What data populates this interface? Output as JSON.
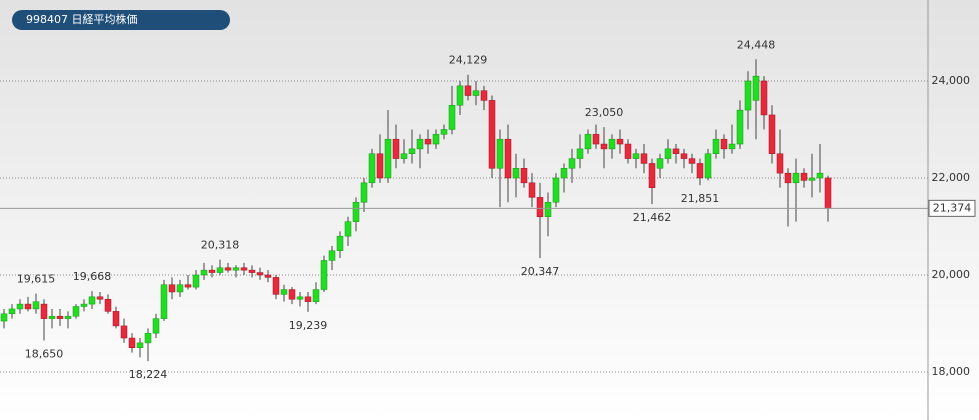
{
  "chart_data": {
    "type": "candlestick",
    "title": "998407 日経平均株価",
    "ylim": [
      17010,
      25670
    ],
    "yticks": [
      {
        "value": 18000,
        "label": "18,000"
      },
      {
        "value": 20000,
        "label": "20,000"
      },
      {
        "value": 22000,
        "label": "22,000"
      },
      {
        "value": 24000,
        "label": "24,000"
      }
    ],
    "grid": true,
    "up_color": "#22dd22",
    "down_color": "#e8283c",
    "candles": [
      [
        19050,
        19300,
        18900,
        19200
      ],
      [
        19200,
        19400,
        19100,
        19300
      ],
      [
        19300,
        19500,
        19200,
        19400
      ],
      [
        19400,
        19550,
        19250,
        19300
      ],
      [
        19300,
        19615,
        19200,
        19450
      ],
      [
        19400,
        19500,
        18650,
        19100
      ],
      [
        19100,
        19300,
        18900,
        19150
      ],
      [
        19150,
        19300,
        18950,
        19100
      ],
      [
        19100,
        19250,
        18900,
        19150
      ],
      [
        19150,
        19400,
        19100,
        19350
      ],
      [
        19350,
        19500,
        19250,
        19400
      ],
      [
        19400,
        19668,
        19300,
        19550
      ],
      [
        19550,
        19650,
        19400,
        19500
      ],
      [
        19500,
        19600,
        19200,
        19250
      ],
      [
        19250,
        19350,
        18900,
        18950
      ],
      [
        18950,
        19100,
        18600,
        18700
      ],
      [
        18700,
        18800,
        18400,
        18500
      ],
      [
        18500,
        18700,
        18300,
        18600
      ],
      [
        18600,
        18900,
        18224,
        18800
      ],
      [
        18800,
        19200,
        18700,
        19100
      ],
      [
        19100,
        19900,
        19050,
        19800
      ],
      [
        19800,
        19950,
        19500,
        19650
      ],
      [
        19650,
        19900,
        19550,
        19800
      ],
      [
        19800,
        20000,
        19700,
        19750
      ],
      [
        19750,
        20100,
        19700,
        20000
      ],
      [
        20000,
        20250,
        19900,
        20100
      ],
      [
        20100,
        20200,
        19950,
        20050
      ],
      [
        20050,
        20318,
        20000,
        20150
      ],
      [
        20150,
        20250,
        20050,
        20100
      ],
      [
        20100,
        20200,
        19950,
        20150
      ],
      [
        20150,
        20250,
        20000,
        20100
      ],
      [
        20100,
        20200,
        19950,
        20050
      ],
      [
        20050,
        20150,
        19900,
        20000
      ],
      [
        20000,
        20100,
        19850,
        19950
      ],
      [
        19950,
        20000,
        19500,
        19600
      ],
      [
        19600,
        19800,
        19450,
        19700
      ],
      [
        19700,
        19750,
        19400,
        19500
      ],
      [
        19500,
        19650,
        19350,
        19550
      ],
      [
        19550,
        19650,
        19239,
        19450
      ],
      [
        19450,
        19850,
        19400,
        19700
      ],
      [
        19700,
        20400,
        19650,
        20300
      ],
      [
        20300,
        20600,
        20100,
        20500
      ],
      [
        20500,
        20900,
        20350,
        20800
      ],
      [
        20800,
        21200,
        20600,
        21100
      ],
      [
        21100,
        21600,
        20900,
        21500
      ],
      [
        21500,
        22000,
        21300,
        21900
      ],
      [
        21900,
        22600,
        21800,
        22500
      ],
      [
        22500,
        22900,
        21900,
        22000
      ],
      [
        22000,
        23400,
        21900,
        22800
      ],
      [
        22800,
        23100,
        22200,
        22400
      ],
      [
        22400,
        22800,
        22300,
        22500
      ],
      [
        22500,
        23000,
        22300,
        22600
      ],
      [
        22600,
        22900,
        22200,
        22800
      ],
      [
        22800,
        23000,
        22500,
        22700
      ],
      [
        22700,
        23000,
        22600,
        22900
      ],
      [
        22900,
        23100,
        22800,
        23000
      ],
      [
        23000,
        23900,
        22900,
        23500
      ],
      [
        23500,
        24000,
        23300,
        23900
      ],
      [
        23900,
        24129,
        23600,
        23700
      ],
      [
        23700,
        24000,
        23500,
        23800
      ],
      [
        23800,
        23900,
        23400,
        23600
      ],
      [
        23600,
        23700,
        22000,
        22200
      ],
      [
        22200,
        23000,
        21400,
        22800
      ],
      [
        22800,
        23100,
        21500,
        22000
      ],
      [
        22000,
        22500,
        21600,
        22200
      ],
      [
        22200,
        22400,
        21800,
        21900
      ],
      [
        21900,
        22100,
        21400,
        21600
      ],
      [
        21600,
        21900,
        20347,
        21200
      ],
      [
        21200,
        21700,
        20800,
        21500
      ],
      [
        21500,
        22100,
        21400,
        22000
      ],
      [
        22000,
        22300,
        21700,
        22200
      ],
      [
        22200,
        22600,
        21900,
        22400
      ],
      [
        22400,
        22900,
        22200,
        22600
      ],
      [
        22600,
        23000,
        22500,
        22900
      ],
      [
        22900,
        23100,
        22600,
        22700
      ],
      [
        22700,
        23050,
        22200,
        22600
      ],
      [
        22600,
        22900,
        22400,
        22800
      ],
      [
        22800,
        23000,
        22500,
        22700
      ],
      [
        22700,
        22800,
        22300,
        22400
      ],
      [
        22400,
        22600,
        22200,
        22500
      ],
      [
        22500,
        22700,
        22100,
        22300
      ],
      [
        22300,
        22400,
        21462,
        21800
      ],
      [
        22200,
        22500,
        22000,
        22400
      ],
      [
        22400,
        22800,
        22300,
        22600
      ],
      [
        22600,
        22700,
        22300,
        22500
      ],
      [
        22500,
        22600,
        22200,
        22400
      ],
      [
        22400,
        22500,
        22100,
        22300
      ],
      [
        22300,
        22400,
        21851,
        22000
      ],
      [
        22000,
        22600,
        21950,
        22500
      ],
      [
        22500,
        23000,
        22400,
        22800
      ],
      [
        22800,
        22900,
        22400,
        22600
      ],
      [
        22600,
        23100,
        22500,
        22700
      ],
      [
        22700,
        23600,
        22600,
        23400
      ],
      [
        23400,
        24200,
        23000,
        24000
      ],
      [
        23600,
        24448,
        22800,
        24100
      ],
      [
        24000,
        24100,
        23000,
        23300
      ],
      [
        23300,
        23500,
        22300,
        22500
      ],
      [
        22500,
        23000,
        21800,
        22100
      ],
      [
        22100,
        22200,
        21000,
        21900
      ],
      [
        21900,
        22400,
        21100,
        22100
      ],
      [
        22100,
        22200,
        21800,
        21950
      ],
      [
        21950,
        22500,
        21600,
        22000
      ],
      [
        22000,
        22700,
        21700,
        22100
      ],
      [
        22000,
        22050,
        21100,
        21374
      ]
    ],
    "annotations": [
      {
        "value": 19615,
        "label": "19,615"
      },
      {
        "value": 18650,
        "label": "18,650"
      },
      {
        "value": 19668,
        "label": "19,668"
      },
      {
        "value": 18224,
        "label": "18,224"
      },
      {
        "value": 20318,
        "label": "20,318"
      },
      {
        "value": 19239,
        "label": "19,239"
      },
      {
        "value": 24129,
        "label": "24,129"
      },
      {
        "value": 20347,
        "label": "20,347"
      },
      {
        "value": 23050,
        "label": "23,050"
      },
      {
        "value": 21462,
        "label": "21,462"
      },
      {
        "value": 21851,
        "label": "21,851"
      },
      {
        "value": 24448,
        "label": "24,448"
      }
    ],
    "last": {
      "value": 21374,
      "label": "21,374"
    }
  }
}
